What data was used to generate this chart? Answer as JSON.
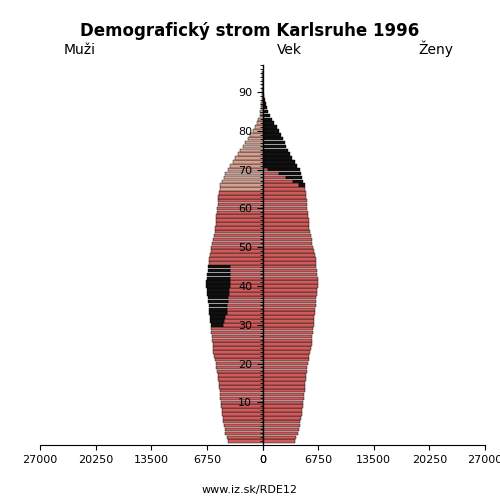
{
  "title": "Demografický strom Karlsruhe 1996",
  "xlabel_left": "Muži",
  "xlabel_right": "Ženy",
  "ylabel": "Vek",
  "footer": "www.iz.sk/RDE12",
  "xlim": 27000,
  "bar_color_main": "#cd5c5c",
  "bar_color_light": "#d4a090",
  "bar_color_dark": "#111111",
  "ages": [
    0,
    1,
    2,
    3,
    4,
    5,
    6,
    7,
    8,
    9,
    10,
    11,
    12,
    13,
    14,
    15,
    16,
    17,
    18,
    19,
    20,
    21,
    22,
    23,
    24,
    25,
    26,
    27,
    28,
    29,
    30,
    31,
    32,
    33,
    34,
    35,
    36,
    37,
    38,
    39,
    40,
    41,
    42,
    43,
    44,
    45,
    46,
    47,
    48,
    49,
    50,
    51,
    52,
    53,
    54,
    55,
    56,
    57,
    58,
    59,
    60,
    61,
    62,
    63,
    64,
    65,
    66,
    67,
    68,
    69,
    70,
    71,
    72,
    73,
    74,
    75,
    76,
    77,
    78,
    79,
    80,
    81,
    82,
    83,
    84,
    85,
    86,
    87,
    88,
    89,
    90,
    91,
    92,
    93,
    94,
    95
  ],
  "males": [
    4200,
    4350,
    4500,
    4600,
    4700,
    4800,
    4850,
    4900,
    4950,
    5000,
    5050,
    5100,
    5150,
    5200,
    5250,
    5300,
    5350,
    5400,
    5500,
    5600,
    5700,
    5800,
    5900,
    5950,
    6000,
    6050,
    6100,
    6150,
    6200,
    6250,
    6300,
    6350,
    6400,
    6450,
    6500,
    6550,
    6600,
    6650,
    6700,
    6750,
    6800,
    6800,
    6750,
    6700,
    6650,
    6600,
    6550,
    6500,
    6400,
    6300,
    6200,
    6100,
    6000,
    5900,
    5800,
    5750,
    5700,
    5650,
    5600,
    5550,
    5500,
    5450,
    5400,
    5350,
    5300,
    5200,
    5100,
    4900,
    4700,
    4500,
    4200,
    3900,
    3600,
    3300,
    3000,
    2700,
    2400,
    2100,
    1800,
    1500,
    1200,
    900,
    700,
    500,
    350,
    250,
    180,
    130,
    90,
    60,
    30,
    20,
    12,
    8,
    5,
    2
  ],
  "females": [
    4000,
    4100,
    4250,
    4400,
    4500,
    4600,
    4700,
    4800,
    4850,
    4900,
    4950,
    5000,
    5050,
    5100,
    5150,
    5200,
    5250,
    5300,
    5350,
    5400,
    5500,
    5600,
    5700,
    5800,
    5900,
    5950,
    6000,
    6050,
    6100,
    6150,
    6200,
    6250,
    6300,
    6350,
    6400,
    6450,
    6500,
    6550,
    6600,
    6650,
    6700,
    6750,
    6700,
    6650,
    6600,
    6550,
    6500,
    6450,
    6350,
    6250,
    6150,
    6050,
    5950,
    5850,
    5750,
    5700,
    5650,
    5600,
    5550,
    5500,
    5450,
    5400,
    5350,
    5300,
    5250,
    5200,
    5100,
    4950,
    4800,
    4650,
    4500,
    4200,
    3900,
    3600,
    3300,
    3100,
    2900,
    2700,
    2500,
    2300,
    2000,
    1700,
    1400,
    1100,
    850,
    650,
    500,
    380,
    270,
    190,
    110,
    70,
    40,
    22,
    13,
    7
  ],
  "excess_females": [
    0,
    0,
    0,
    0,
    0,
    0,
    0,
    0,
    0,
    0,
    0,
    0,
    0,
    0,
    0,
    0,
    0,
    0,
    0,
    0,
    0,
    0,
    0,
    0,
    0,
    0,
    0,
    0,
    0,
    0,
    0,
    0,
    0,
    0,
    0,
    0,
    0,
    0,
    0,
    0,
    0,
    0,
    0,
    0,
    0,
    0,
    0,
    0,
    0,
    0,
    0,
    0,
    0,
    0,
    0,
    0,
    0,
    0,
    0,
    0,
    0,
    0,
    0,
    0,
    0,
    0,
    700,
    1250,
    1900,
    2650,
    3800,
    4800,
    5500,
    6000,
    6200,
    6400,
    6100,
    5700,
    5000,
    4200,
    3200,
    2600,
    2100,
    1600,
    1200,
    1000,
    700,
    500,
    350,
    230,
    130,
    80,
    45,
    25,
    15,
    8
  ],
  "excess_males": [
    0,
    0,
    0,
    0,
    0,
    0,
    0,
    0,
    0,
    0,
    0,
    0,
    0,
    0,
    0,
    0,
    0,
    0,
    0,
    0,
    0,
    0,
    0,
    0,
    0,
    0,
    0,
    0,
    0,
    0,
    1500,
    1700,
    1900,
    2100,
    2200,
    2300,
    2400,
    2500,
    2600,
    2700,
    2800,
    2800,
    2750,
    2700,
    2650,
    2600,
    0,
    0,
    0,
    0,
    0,
    0,
    0,
    0,
    0,
    0,
    0,
    0,
    0,
    0,
    0,
    0,
    0,
    0,
    0,
    0,
    0,
    0,
    0,
    0,
    0,
    0,
    0,
    0,
    0,
    0,
    0,
    0,
    0,
    0,
    0,
    0,
    0,
    0,
    0,
    0,
    0,
    0,
    0,
    0,
    0,
    0,
    0,
    0,
    0,
    0
  ]
}
